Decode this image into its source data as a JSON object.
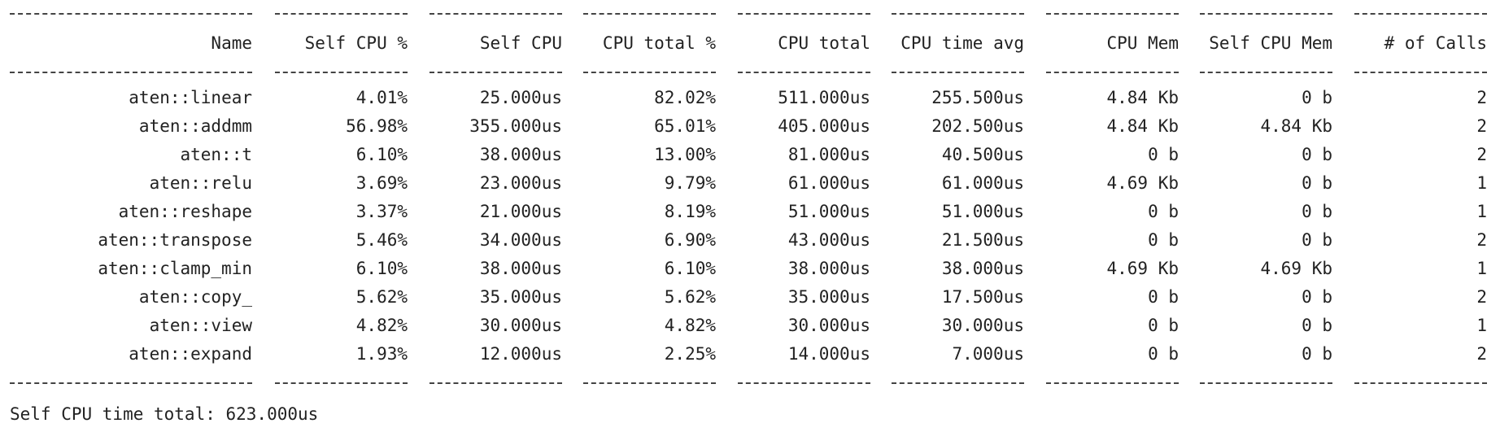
{
  "table": {
    "columns": [
      "Name",
      "Self CPU %",
      "Self CPU",
      "CPU total %",
      "CPU total",
      "CPU time avg",
      "CPU Mem",
      "Self CPU Mem",
      "# of Calls"
    ],
    "rows": [
      [
        "aten::linear",
        "4.01%",
        "25.000us",
        "82.02%",
        "511.000us",
        "255.500us",
        "4.84 Kb",
        "0 b",
        "2"
      ],
      [
        "aten::addmm",
        "56.98%",
        "355.000us",
        "65.01%",
        "405.000us",
        "202.500us",
        "4.84 Kb",
        "4.84 Kb",
        "2"
      ],
      [
        "aten::t",
        "6.10%",
        "38.000us",
        "13.00%",
        "81.000us",
        "40.500us",
        "0 b",
        "0 b",
        "2"
      ],
      [
        "aten::relu",
        "3.69%",
        "23.000us",
        "9.79%",
        "61.000us",
        "61.000us",
        "4.69 Kb",
        "0 b",
        "1"
      ],
      [
        "aten::reshape",
        "3.37%",
        "21.000us",
        "8.19%",
        "51.000us",
        "51.000us",
        "0 b",
        "0 b",
        "1"
      ],
      [
        "aten::transpose",
        "5.46%",
        "34.000us",
        "6.90%",
        "43.000us",
        "21.500us",
        "0 b",
        "0 b",
        "2"
      ],
      [
        "aten::clamp_min",
        "6.10%",
        "38.000us",
        "6.10%",
        "38.000us",
        "38.000us",
        "4.69 Kb",
        "4.69 Kb",
        "1"
      ],
      [
        "aten::copy_",
        "5.62%",
        "35.000us",
        "5.62%",
        "35.000us",
        "17.500us",
        "0 b",
        "0 b",
        "2"
      ],
      [
        "aten::view",
        "4.82%",
        "30.000us",
        "4.82%",
        "30.000us",
        "30.000us",
        "0 b",
        "0 b",
        "1"
      ],
      [
        "aten::expand",
        "1.93%",
        "12.000us",
        "2.25%",
        "14.000us",
        "7.000us",
        "0 b",
        "0 b",
        "2"
      ]
    ]
  },
  "footer": {
    "summary": "Self CPU time total: 623.000us"
  }
}
